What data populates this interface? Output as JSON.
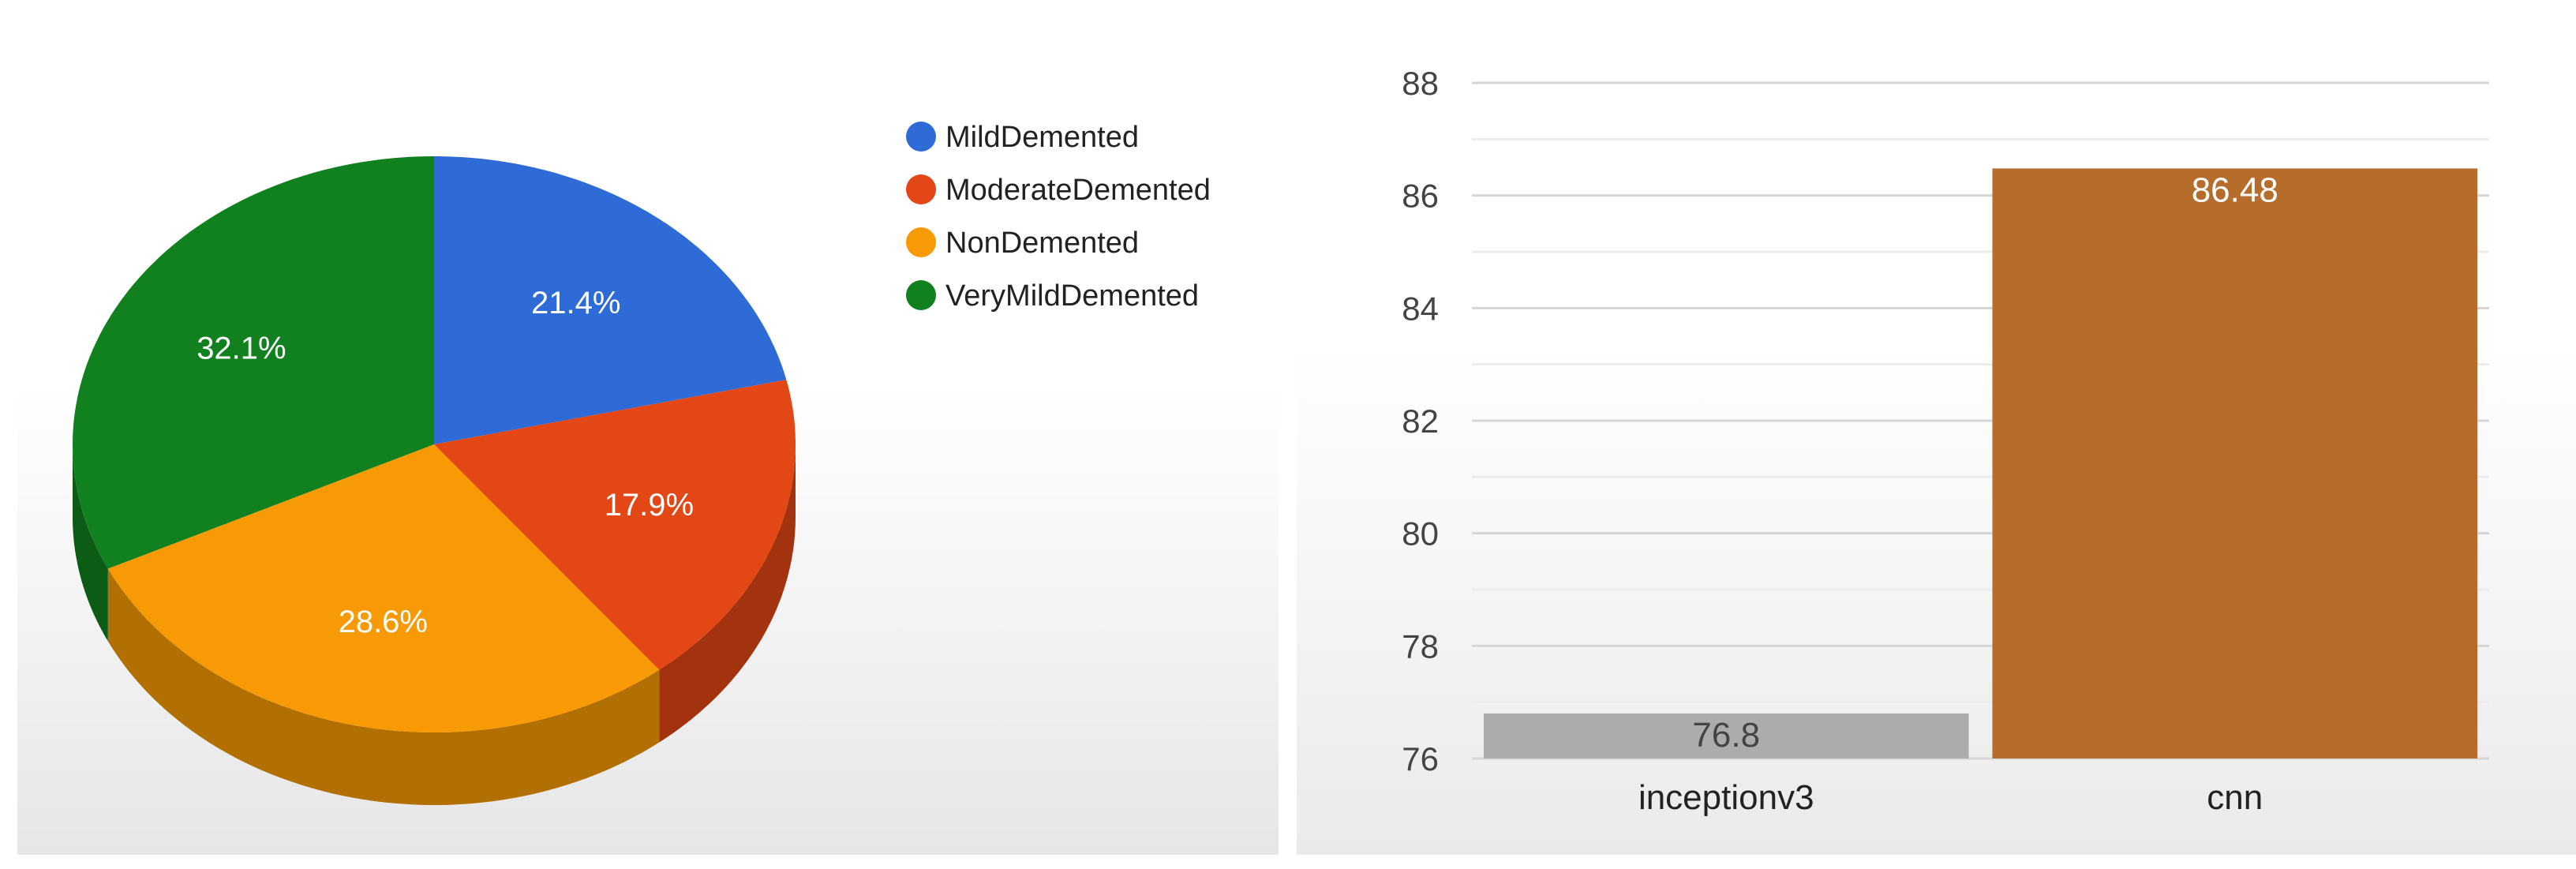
{
  "charts": {
    "pie": {
      "chart_data": {
        "type": "pie",
        "title": "",
        "slices": [
          {
            "label": "MildDemented",
            "value": 21.4,
            "display": "21.4%",
            "color": "#2f6bd6"
          },
          {
            "label": "ModerateDemented",
            "value": 17.9,
            "display": "17.9%",
            "color": "#e34715"
          },
          {
            "label": "NonDemented",
            "value": 28.6,
            "display": "28.6%",
            "color": "#f79a05"
          },
          {
            "label": "VeryMildDemented",
            "value": 32.1,
            "display": "32.1%",
            "color": "#11801f"
          }
        ],
        "style": "3d",
        "legend_position": "right"
      }
    },
    "bar": {
      "chart_data": {
        "type": "bar",
        "title": "",
        "xlabel": "",
        "ylabel": "",
        "categories": [
          "inceptionv3",
          "cnn"
        ],
        "values": [
          76.8,
          86.48
        ],
        "value_labels": [
          "76.8",
          "86.48"
        ],
        "colors": [
          "#acacac",
          "#b66d2c"
        ],
        "ylim": [
          76,
          88
        ],
        "yticks": [
          "76",
          "78",
          "80",
          "82",
          "84",
          "86",
          "88"
        ],
        "grid": true
      }
    }
  }
}
